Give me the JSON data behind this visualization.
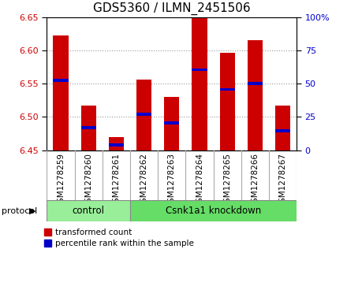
{
  "title": "GDS5360 / ILMN_2451506",
  "samples": [
    "GSM1278259",
    "GSM1278260",
    "GSM1278261",
    "GSM1278262",
    "GSM1278263",
    "GSM1278264",
    "GSM1278265",
    "GSM1278266",
    "GSM1278267"
  ],
  "bar_values": [
    6.622,
    6.517,
    6.47,
    6.556,
    6.53,
    6.65,
    6.597,
    6.615,
    6.517
  ],
  "bar_bottom": 6.45,
  "percentile_values": [
    6.555,
    6.484,
    6.458,
    6.504,
    6.491,
    6.571,
    6.541,
    6.55,
    6.479
  ],
  "ylim": [
    6.45,
    6.65
  ],
  "yticks_left": [
    6.45,
    6.5,
    6.55,
    6.6,
    6.65
  ],
  "yticks_right_vals": [
    0,
    25,
    50,
    75,
    100
  ],
  "bar_color": "#cc0000",
  "percentile_color": "#0000cc",
  "bar_width": 0.55,
  "control_samples": 3,
  "control_label": "control",
  "knockdown_label": "Csnk1a1 knockdown",
  "control_color": "#99ee99",
  "knockdown_color": "#66dd66",
  "protocol_label": "protocol",
  "legend_bar_label": "transformed count",
  "legend_pct_label": "percentile rank within the sample",
  "title_fontsize": 11,
  "label_fontsize": 7.5,
  "tick_fontsize": 8,
  "right_tick_labels": [
    "0",
    "25",
    "50",
    "75",
    "100%"
  ]
}
